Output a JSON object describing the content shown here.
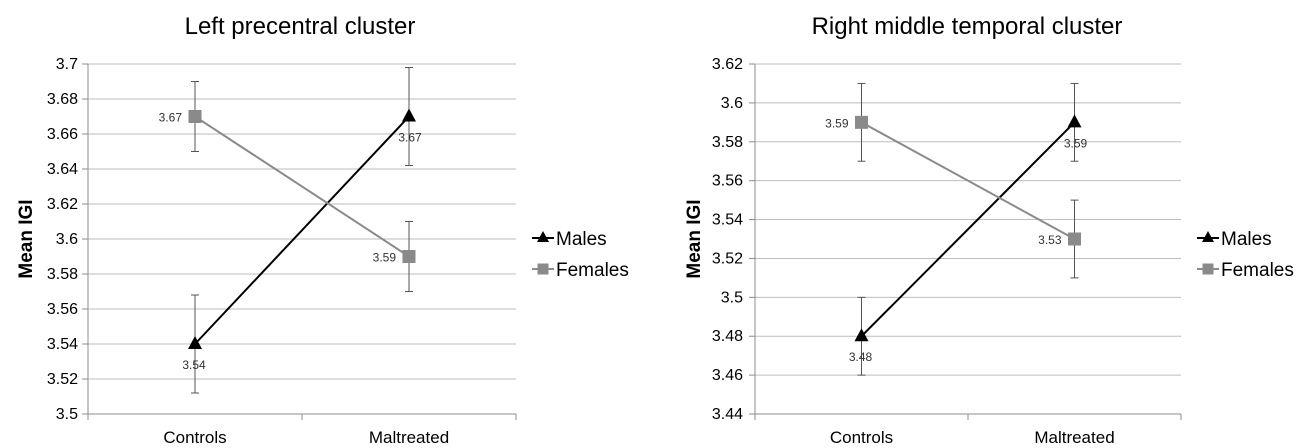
{
  "chart_data": [
    {
      "type": "line",
      "title": "Left precentral cluster",
      "xlabel": "",
      "ylabel": "Mean IGI",
      "categories": [
        "Controls",
        "Maltreated"
      ],
      "ylim": [
        3.5,
        3.7
      ],
      "ytick_step": 0.02,
      "yticks": [
        "3.5",
        "3.52",
        "3.54",
        "3.56",
        "3.58",
        "3.6",
        "3.62",
        "3.64",
        "3.66",
        "3.68",
        "3.7"
      ],
      "grid": true,
      "legend": "right",
      "series": [
        {
          "name": "Males",
          "values": [
            3.54,
            3.67
          ],
          "errors": [
            0.028,
            0.028
          ],
          "labels": [
            "3.54",
            "3.67"
          ],
          "marker": "triangle",
          "color": "#000000"
        },
        {
          "name": "Females",
          "values": [
            3.67,
            3.59
          ],
          "errors": [
            0.02,
            0.02
          ],
          "labels": [
            "3.67",
            "3.59"
          ],
          "marker": "square",
          "color": "#8a8a8a"
        }
      ]
    },
    {
      "type": "line",
      "title": "Right middle temporal cluster",
      "xlabel": "",
      "ylabel": "Mean IGI",
      "categories": [
        "Controls",
        "Maltreated"
      ],
      "ylim": [
        3.44,
        3.62
      ],
      "ytick_step": 0.02,
      "yticks": [
        "3.44",
        "3.46",
        "3.48",
        "3.5",
        "3.52",
        "3.54",
        "3.56",
        "3.58",
        "3.6",
        "3.62"
      ],
      "grid": true,
      "legend": "right",
      "series": [
        {
          "name": "Males",
          "values": [
            3.48,
            3.59
          ],
          "errors": [
            0.02,
            0.02
          ],
          "labels": [
            "3.48",
            "3.59"
          ],
          "marker": "triangle",
          "color": "#000000"
        },
        {
          "name": "Females",
          "values": [
            3.59,
            3.53
          ],
          "errors": [
            0.02,
            0.02
          ],
          "labels": [
            "3.59",
            "3.53"
          ],
          "marker": "square",
          "color": "#8a8a8a"
        }
      ]
    }
  ]
}
